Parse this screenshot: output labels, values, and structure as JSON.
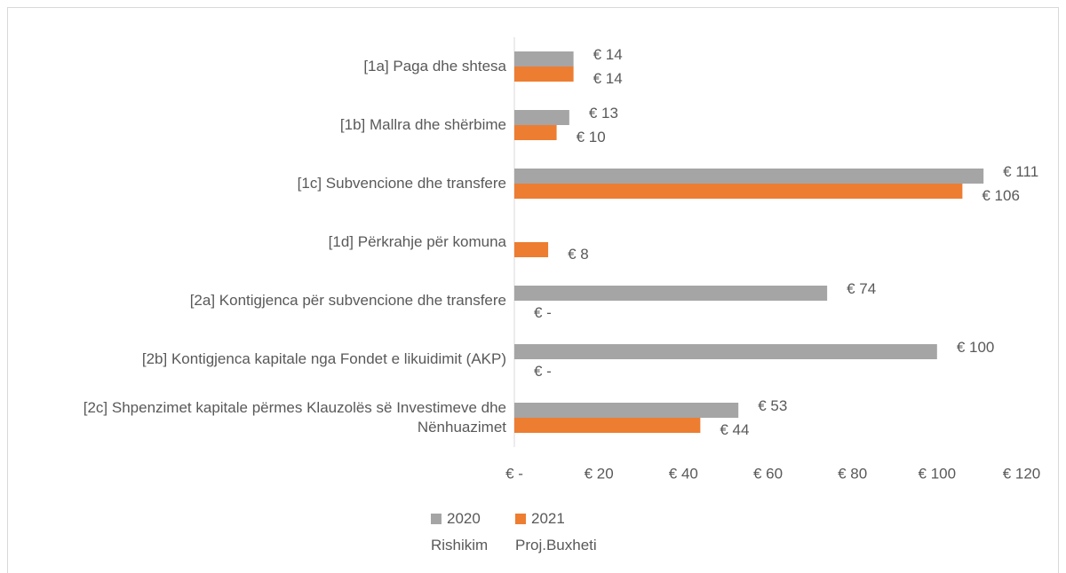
{
  "chart_data": {
    "type": "barh",
    "categories": [
      "[1a] Paga dhe shtesa",
      "[1b] Mallra dhe shërbime",
      "[1c] Subvencione dhe transfere",
      "[1d] Përkrahje për komuna",
      "[2a] Kontigjenca për subvencione dhe transfere",
      "[2b] Kontigjenca kapitale nga Fondet e likuidimit (AKP)",
      "[2c] Shpenzimet kapitale përmes Klauzolës së Investimeve dhe Nënhuazimet"
    ],
    "series": [
      {
        "name": "2020 Rishikim",
        "color": "#a5a5a5",
        "values": [
          14,
          13,
          111,
          null,
          74,
          100,
          53
        ],
        "value_labels": [
          "€ 14",
          "€ 13",
          "€ 111",
          null,
          "€ 74",
          "€ 100",
          "€ 53"
        ]
      },
      {
        "name": "2021 Proj.Buxheti",
        "color": "#ed7d31",
        "values": [
          14,
          10,
          106,
          8,
          0,
          0,
          44
        ],
        "value_labels": [
          "€ 14",
          "€ 10",
          "€ 106",
          "€ 8",
          "€ -",
          "€ -",
          "€ 44"
        ]
      }
    ],
    "xlim": [
      0,
      120
    ],
    "xticks": [
      {
        "value": 0,
        "label": "€ -"
      },
      {
        "value": 20,
        "label": "€ 20"
      },
      {
        "value": 40,
        "label": "€ 40"
      },
      {
        "value": 60,
        "label": "€ 60"
      },
      {
        "value": 80,
        "label": "€ 80"
      },
      {
        "value": 100,
        "label": "€ 100"
      },
      {
        "value": 120,
        "label": "€ 120"
      }
    ],
    "legend": "bottom"
  }
}
